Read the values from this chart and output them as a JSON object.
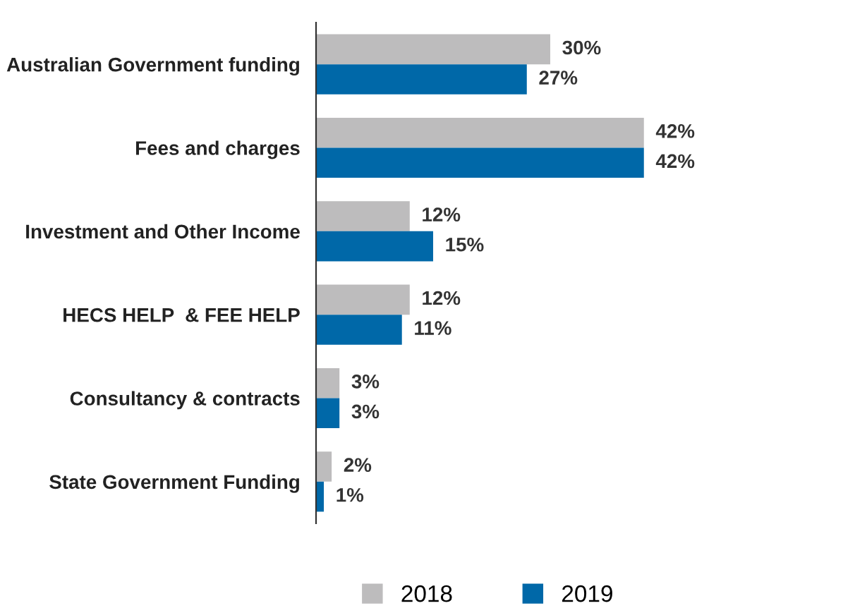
{
  "chart_data": {
    "type": "bar",
    "orientation": "horizontal",
    "categories": [
      "Australian Government funding",
      "Fees and charges",
      "Investment and Other Income",
      "HECS HELP  & FEE HELP",
      "Consultancy & contracts",
      "State Government Funding"
    ],
    "series": [
      {
        "name": "2018",
        "color": "#bdbcbd",
        "values": [
          30,
          42,
          12,
          12,
          3,
          2
        ],
        "value_labels": [
          "30%",
          "42%",
          "12%",
          "12%",
          "3%",
          "2%"
        ]
      },
      {
        "name": "2019",
        "color": "#0068a8",
        "values": [
          27,
          42,
          15,
          11,
          3,
          1
        ],
        "value_labels": [
          "27%",
          "42%",
          "15%",
          "11%",
          "3%",
          "1%"
        ]
      }
    ],
    "tick_labels": "y",
    "grid": false,
    "legend": "bottom"
  }
}
